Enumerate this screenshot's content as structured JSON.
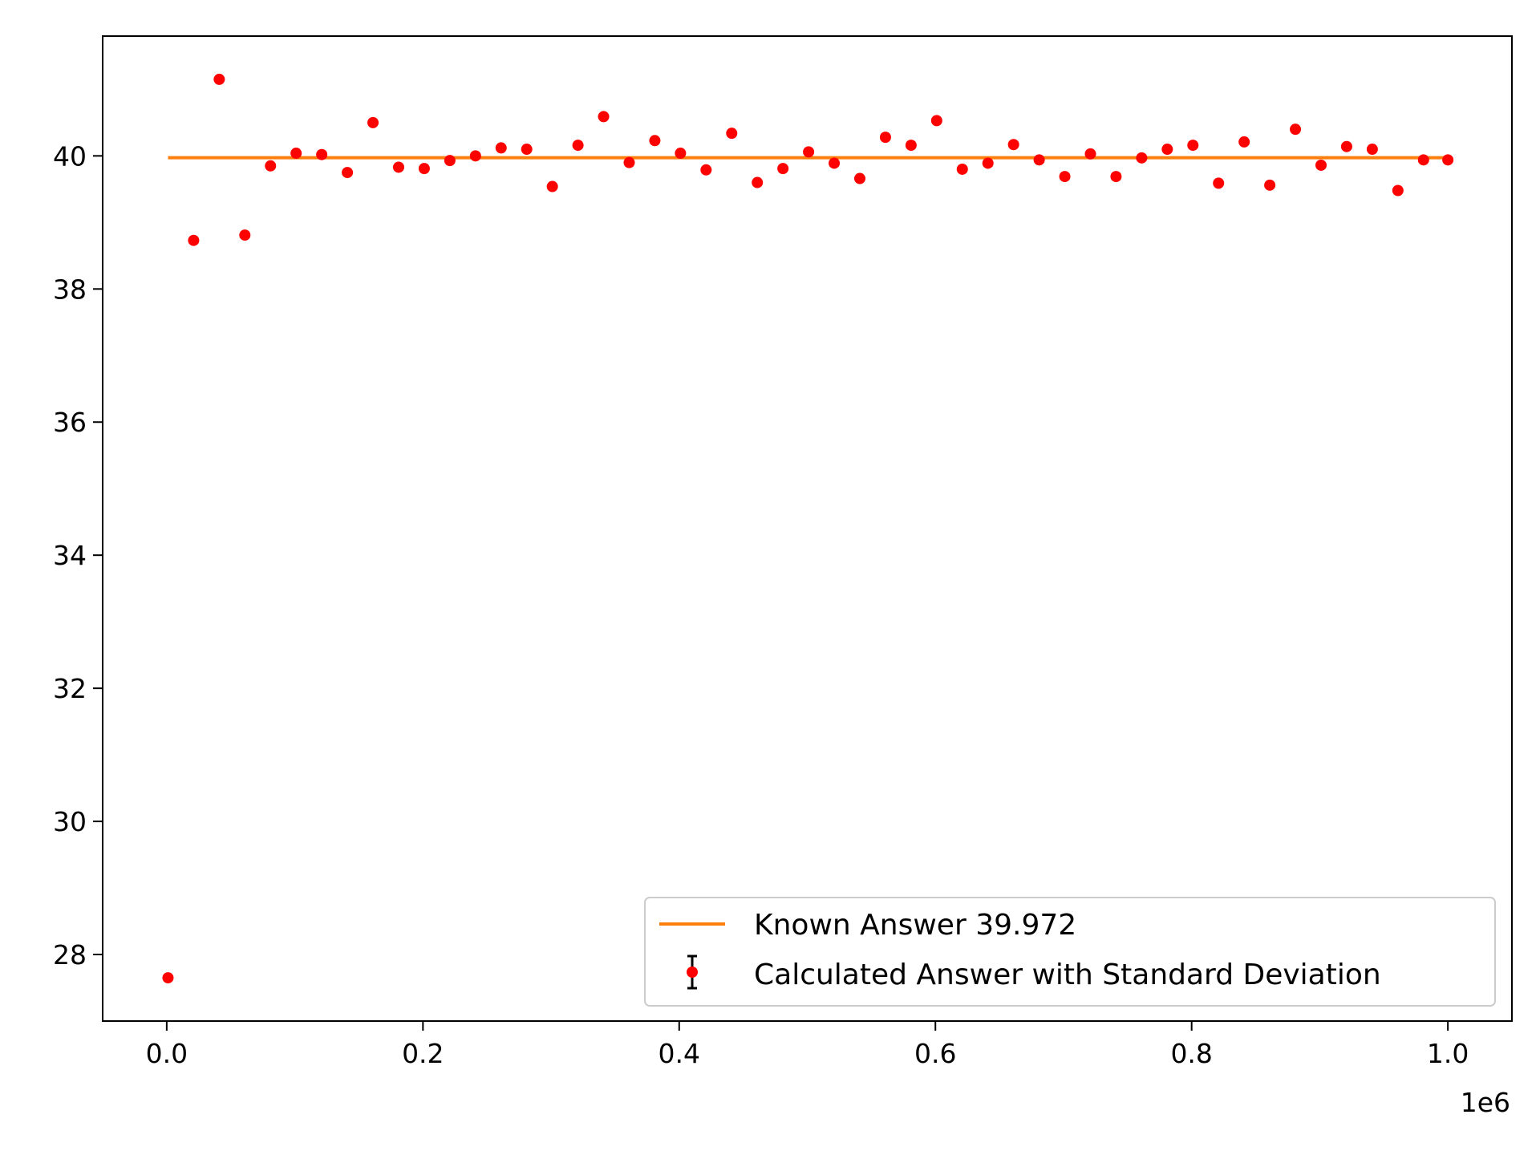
{
  "chart_data": {
    "type": "scatter",
    "title": "",
    "xlabel": "",
    "ylabel": "",
    "x_offset_label": "1e6",
    "xlim": [
      -0.05,
      1.05
    ],
    "ylim": [
      27.0,
      41.8
    ],
    "x_ticks": [
      0.0,
      0.2,
      0.4,
      0.6,
      0.8,
      1.0
    ],
    "x_tick_labels": [
      "0.0",
      "0.2",
      "0.4",
      "0.6",
      "0.8",
      "1.0"
    ],
    "y_ticks": [
      28,
      30,
      32,
      34,
      36,
      38,
      40
    ],
    "y_tick_labels": [
      "28",
      "30",
      "32",
      "34",
      "36",
      "38",
      "40"
    ],
    "grid": false,
    "legend_position": "lower-right",
    "colors": {
      "known": "#ff7f0e",
      "points": "#ff0000",
      "errorbar": "#000000"
    },
    "series": [
      {
        "name": "Known Answer 39.972",
        "kind": "line",
        "x": [
          0.001,
          1.0
        ],
        "y": [
          39.972,
          39.972
        ]
      },
      {
        "name": "Calculated Answer with Standard Deviation",
        "kind": "errorbar",
        "x": [
          0.001,
          0.021,
          0.041,
          0.061,
          0.081,
          0.101,
          0.121,
          0.141,
          0.161,
          0.181,
          0.201,
          0.221,
          0.241,
          0.261,
          0.281,
          0.301,
          0.321,
          0.341,
          0.361,
          0.381,
          0.401,
          0.421,
          0.441,
          0.461,
          0.481,
          0.501,
          0.521,
          0.541,
          0.561,
          0.581,
          0.601,
          0.621,
          0.641,
          0.661,
          0.681,
          0.701,
          0.721,
          0.741,
          0.761,
          0.781,
          0.801,
          0.821,
          0.841,
          0.861,
          0.881,
          0.901,
          0.921,
          0.941,
          0.961,
          0.981,
          1.0
        ],
        "y": [
          27.65,
          38.73,
          41.15,
          38.81,
          39.85,
          40.04,
          40.02,
          39.75,
          40.5,
          39.83,
          39.81,
          39.93,
          40.0,
          40.12,
          40.1,
          39.54,
          40.16,
          40.59,
          39.9,
          40.23,
          40.04,
          39.79,
          40.34,
          39.6,
          39.81,
          40.06,
          39.89,
          39.66,
          40.28,
          40.16,
          40.53,
          39.8,
          39.89,
          40.17,
          39.94,
          39.69,
          40.03,
          39.69,
          39.97,
          40.1,
          40.16,
          39.59,
          40.21,
          39.56,
          40.4,
          39.86,
          40.14,
          40.1,
          39.48,
          39.94,
          39.94
        ]
      }
    ]
  }
}
